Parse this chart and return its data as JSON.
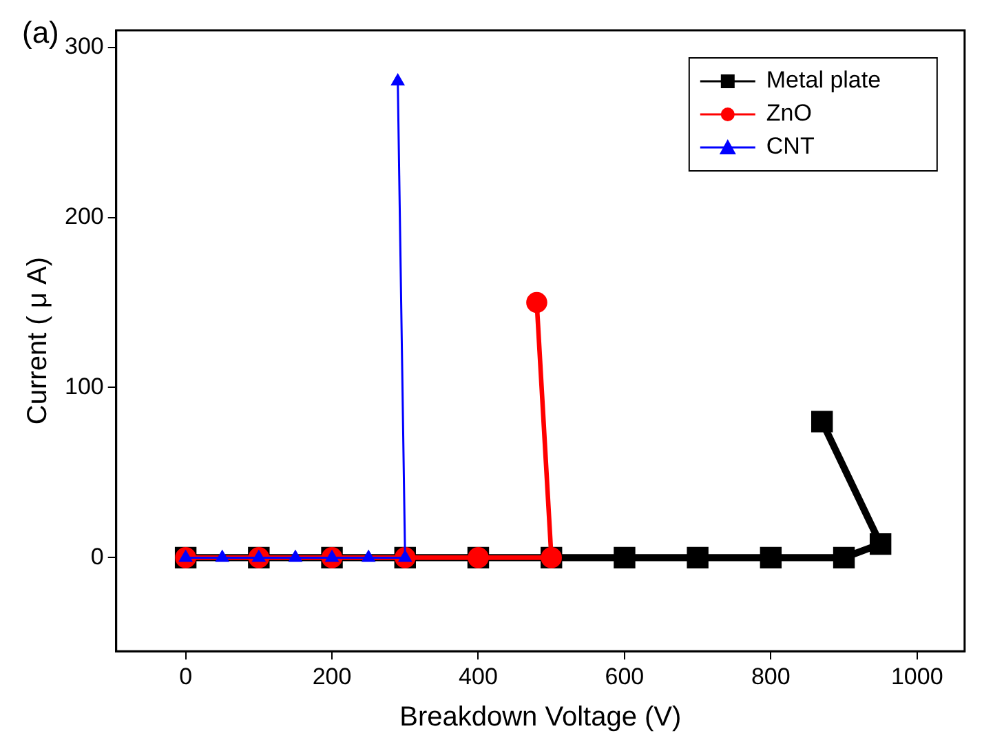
{
  "chart_data": {
    "type": "line",
    "xlabel": "Breakdown Voltage (V)",
    "ylabel": "Current ( μ A)",
    "annotations": [
      "(a)"
    ],
    "xlim": [
      -95,
      1065
    ],
    "ylim": [
      -55,
      310
    ],
    "xticks": [
      0,
      200,
      400,
      600,
      800,
      1000
    ],
    "yticks": [
      0,
      100,
      200,
      300
    ],
    "grid": false,
    "legend": "top right",
    "series": [
      {
        "name": "Metal plate",
        "color": "#000000",
        "marker": "square",
        "x": [
          0,
          100,
          200,
          300,
          400,
          500,
          600,
          700,
          800,
          900,
          950,
          870
        ],
        "values": [
          0,
          0,
          0,
          0,
          0,
          0,
          0,
          0,
          0,
          0,
          8,
          80
        ]
      },
      {
        "name": "ZnO",
        "color": "#ff0000",
        "marker": "circle",
        "x": [
          0,
          100,
          200,
          300,
          400,
          500,
          480
        ],
        "values": [
          0,
          0,
          0,
          0,
          0,
          0,
          150
        ]
      },
      {
        "name": "CNT",
        "color": "#0000ff",
        "marker": "triangle",
        "x": [
          0,
          50,
          100,
          150,
          200,
          250,
          300,
          290
        ],
        "values": [
          0,
          0,
          0,
          0,
          0,
          0,
          0,
          280
        ]
      }
    ]
  }
}
